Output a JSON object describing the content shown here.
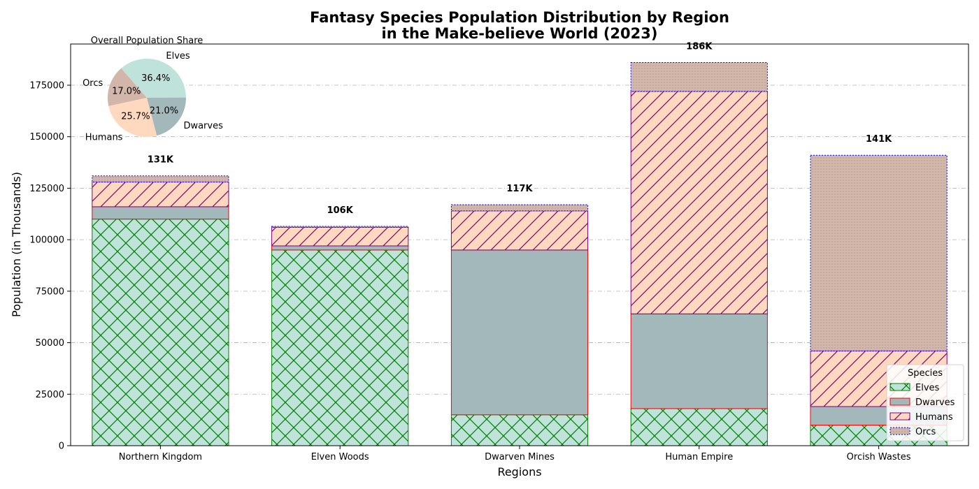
{
  "chart_data": {
    "type": "bar",
    "stacked": true,
    "title": "Fantasy Species Population Distribution by Region\nin the Make-believe World (2023)",
    "xlabel": "Regions",
    "ylabel": "Population (in Thousands)",
    "ylim": [
      0,
      195000
    ],
    "yticks": [
      0,
      25000,
      50000,
      75000,
      100000,
      125000,
      150000,
      175000
    ],
    "grid": "y",
    "categories": [
      "Northern Kingdom",
      "Elven Woods",
      "Dwarven Mines",
      "Human Empire",
      "Orcish Wastes"
    ],
    "series": [
      {
        "name": "Elves",
        "values": [
          110000,
          95000,
          15000,
          18000,
          10000
        ],
        "color": "#bfe3da",
        "edge": "#008000",
        "hatch": "cross"
      },
      {
        "name": "Dwarves",
        "values": [
          6000,
          2000,
          80000,
          46000,
          9000
        ],
        "color": "#a3b8ba",
        "edge": "#ff0000",
        "hatch": "none"
      },
      {
        "name": "Humans",
        "values": [
          12000,
          9000,
          19000,
          108000,
          27000
        ],
        "color": "#ffd9bf",
        "edge": "#800080",
        "hatch": "diag"
      },
      {
        "name": "Orcs",
        "values": [
          3000,
          500,
          3000,
          14000,
          95000
        ],
        "color": "#d2b6aa",
        "edge": "#0000ff",
        "hatch": "dots"
      }
    ],
    "total_labels": [
      "131K",
      "106K",
      "117K",
      "186K",
      "141K"
    ],
    "legend": {
      "title": "Species",
      "placement": "lower-right"
    },
    "inset_pie": {
      "title": "Overall Population Share",
      "labels": [
        "Elves",
        "Orcs",
        "Humans",
        "Dwarves"
      ],
      "percents": [
        36.4,
        17.0,
        25.7,
        21.0
      ],
      "pct_labels": [
        "36.4%",
        "17.0%",
        "25.7%",
        "21.0%"
      ],
      "colors": [
        "#bfe3da",
        "#d2b6aa",
        "#ffd9bf",
        "#a3b8ba"
      ],
      "start_angle_deg": 0
    }
  }
}
